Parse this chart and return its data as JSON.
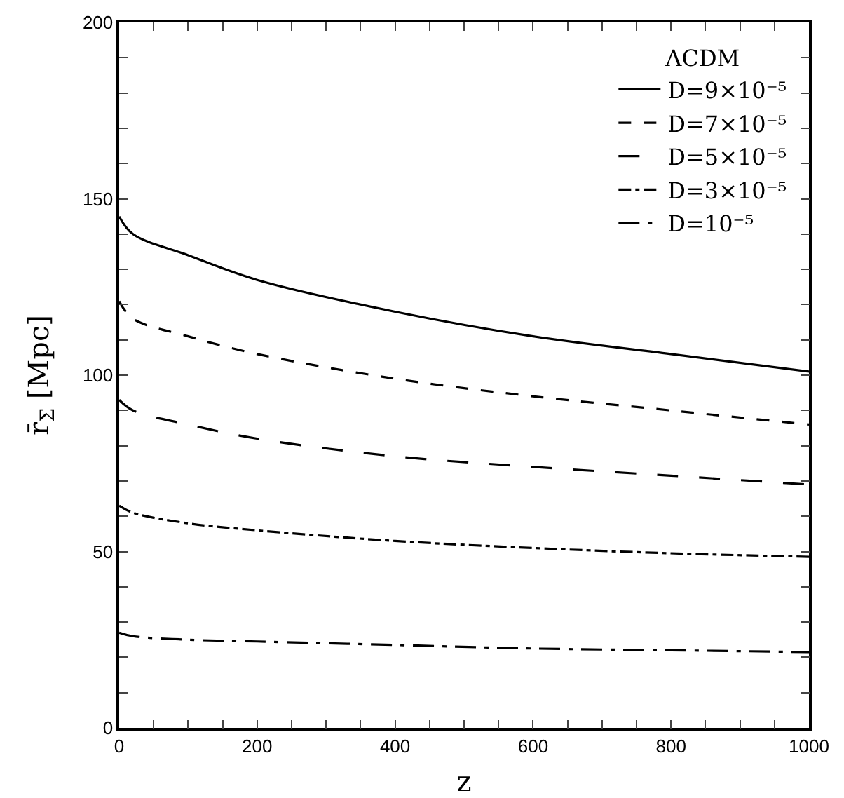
{
  "chart_data": {
    "type": "line",
    "xlabel": "z",
    "ylabel": "r̄$_{Σ}$ [Mpc]",
    "legend_title": "ΛCDM",
    "legend": "top right",
    "grid": false,
    "marker": "none",
    "x": [
      0,
      20,
      100,
      200,
      400,
      600,
      800,
      1000
    ],
    "xlim": [
      0,
      1000
    ],
    "ylim": [
      0,
      200
    ],
    "xticks": [
      0,
      {
        "value": 50,
        "label": null
      },
      {
        "value": 100,
        "label": null
      },
      {
        "value": 150,
        "label": null
      },
      200,
      {
        "value": 250,
        "label": null
      },
      {
        "value": 300,
        "label": null
      },
      {
        "value": 350,
        "label": null
      },
      400,
      {
        "value": 450,
        "label": null
      },
      {
        "value": 500,
        "label": null
      },
      {
        "value": 550,
        "label": null
      },
      600,
      {
        "value": 650,
        "label": null
      },
      {
        "value": 700,
        "label": null
      },
      {
        "value": 750,
        "label": null
      },
      800,
      {
        "value": 850,
        "label": null
      },
      {
        "value": 900,
        "label": null
      },
      {
        "value": 950,
        "label": null
      },
      1000
    ],
    "yticks": [
      0,
      {
        "value": 10,
        "label": null
      },
      {
        "value": 20,
        "label": null
      },
      {
        "value": 30,
        "label": null
      },
      {
        "value": 40,
        "label": null
      },
      50,
      {
        "value": 60,
        "label": null
      },
      {
        "value": 70,
        "label": null
      },
      {
        "value": 80,
        "label": null
      },
      {
        "value": 90,
        "label": null
      },
      100,
      {
        "value": 110,
        "label": null
      },
      {
        "value": 120,
        "label": null
      },
      {
        "value": 130,
        "label": null
      },
      {
        "value": 140,
        "label": null
      },
      150,
      {
        "value": 160,
        "label": null
      },
      {
        "value": 170,
        "label": null
      },
      {
        "value": 180,
        "label": null
      },
      {
        "value": 190,
        "label": null
      },
      200
    ],
    "series": [
      {
        "name": "D=9×10⁻⁵",
        "color": "#000000",
        "line_style": "solid",
        "values": [
          145,
          140,
          134,
          127,
          118,
          111,
          106,
          101
        ]
      },
      {
        "name": "D=7×10⁻⁵",
        "color": "#000000",
        "line_style": "dashed",
        "values": [
          121,
          116,
          111,
          106,
          99,
          94,
          90,
          86
        ]
      },
      {
        "name": "D=5×10⁻⁵",
        "color": "#000000",
        "line_style": "longdash",
        "values": [
          93,
          90,
          86,
          82,
          77,
          74,
          71.5,
          69
        ]
      },
      {
        "name": "D=3×10⁻⁵",
        "color": "#000000",
        "line_style": "dashdot",
        "values": [
          63,
          61,
          58,
          56,
          53,
          51,
          49.5,
          48.5
        ]
      },
      {
        "name": "D=10⁻⁵",
        "color": "#000000",
        "line_style": "longdashdot",
        "values": [
          27,
          26,
          25,
          24.5,
          23.5,
          22.5,
          22,
          21.5
        ]
      }
    ]
  }
}
